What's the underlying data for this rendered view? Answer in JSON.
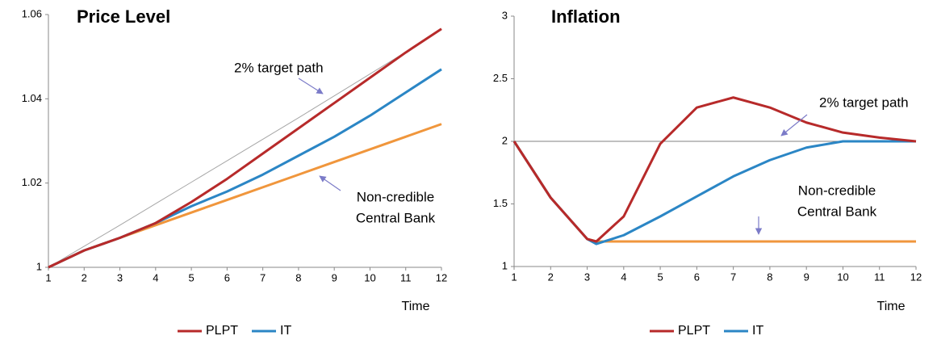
{
  "chart_data": [
    {
      "type": "line",
      "title": "Price Level",
      "x_label": "Time",
      "x": [
        1,
        2,
        3,
        4,
        5,
        6,
        7,
        8,
        9,
        10,
        11,
        12
      ],
      "xlim": [
        1,
        12
      ],
      "xticks": [
        1,
        2,
        3,
        4,
        5,
        6,
        7,
        8,
        9,
        10,
        11,
        12
      ],
      "ylim": [
        1,
        1.06
      ],
      "yticks": [
        1,
        1.02,
        1.04,
        1.06
      ],
      "legend": "bottom",
      "series": [
        {
          "color": "#a6a6a6",
          "line_width": 1,
          "values": [
            1,
            1.005,
            1.01,
            1.0151,
            1.0202,
            1.0253,
            1.0304,
            1.0355,
            1.0407,
            1.0459,
            1.0511,
            1.0564
          ]
        },
        {
          "color": "#f0963c",
          "line_width": 3,
          "values": [
            1,
            1.004,
            1.007,
            1.01,
            1.013,
            1.016,
            1.019,
            1.022,
            1.025,
            1.028,
            1.031,
            1.034
          ]
        },
        {
          "name": "IT",
          "color": "#2b86c5",
          "line_width": 3,
          "values": [
            1,
            1.004,
            1.007,
            1.0105,
            1.0145,
            1.018,
            1.022,
            1.0265,
            1.031,
            1.036,
            1.0415,
            1.047
          ]
        },
        {
          "name": "PLPT",
          "color": "#b72a2a",
          "line_width": 3,
          "values": [
            1,
            1.004,
            1.007,
            1.0105,
            1.0155,
            1.021,
            1.027,
            1.033,
            1.039,
            1.045,
            1.051,
            1.0566
          ]
        }
      ],
      "annotations": [
        [
          "2% target path"
        ],
        [
          "Non-credible",
          "Central Bank"
        ]
      ]
    },
    {
      "type": "line",
      "title": "Inflation",
      "x_label": "Time",
      "x": [
        1,
        2,
        3,
        3.25,
        4,
        5,
        6,
        7,
        8,
        9,
        10,
        11,
        12
      ],
      "xlim": [
        1,
        12
      ],
      "xticks": [
        1,
        2,
        3,
        4,
        5,
        6,
        7,
        8,
        9,
        10,
        11,
        12
      ],
      "ylim": [
        1,
        3
      ],
      "yticks": [
        1,
        1.5,
        2,
        2.5,
        3
      ],
      "legend": "bottom",
      "series": [
        {
          "color": "#808080",
          "line_width": 1,
          "values": [
            2,
            2,
            2,
            2,
            2,
            2,
            2,
            2,
            2,
            2,
            2,
            2,
            2
          ]
        },
        {
          "color": "#f0963c",
          "line_width": 3,
          "values": [
            2,
            1.55,
            1.22,
            1.2,
            1.2,
            1.2,
            1.2,
            1.2,
            1.2,
            1.2,
            1.2,
            1.2,
            1.2
          ]
        },
        {
          "name": "IT",
          "color": "#2b86c5",
          "line_width": 3,
          "values": [
            2,
            1.55,
            1.22,
            1.18,
            1.25,
            1.4,
            1.56,
            1.72,
            1.85,
            1.95,
            2,
            2,
            2
          ]
        },
        {
          "name": "PLPT",
          "color": "#b72a2a",
          "line_width": 3,
          "values": [
            2,
            1.55,
            1.22,
            1.2,
            1.4,
            1.98,
            2.27,
            2.35,
            2.27,
            2.15,
            2.07,
            2.03,
            2
          ]
        }
      ],
      "annotations": [
        [
          "2% target path"
        ],
        [
          "Non-credible",
          "Central Bank"
        ]
      ]
    }
  ]
}
